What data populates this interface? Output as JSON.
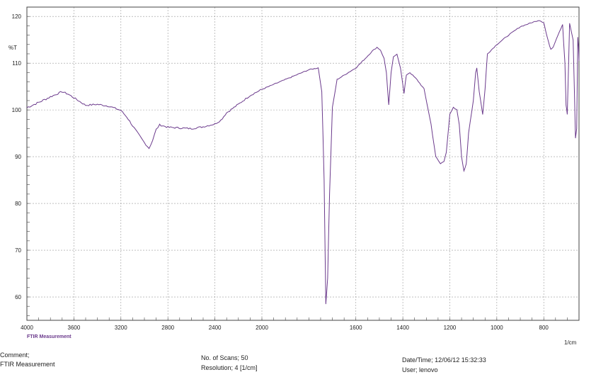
{
  "chart_data": {
    "type": "line",
    "title": "",
    "ylabel": "%T",
    "xlabel": "1/cm",
    "xlim": [
      4000,
      650
    ],
    "ylim": [
      55,
      122
    ],
    "x_ticks": [
      "4000",
      "3600",
      "3200",
      "2800",
      "2400",
      "2000",
      "1600",
      "1400",
      "1200",
      "1000",
      "800"
    ],
    "y_ticks": [
      "120",
      "110",
      "100",
      "90",
      "80",
      "70",
      "60"
    ],
    "grid": true,
    "line_color": "#6b3a8c",
    "series": [
      {
        "values": [
          [
            4000,
            100.5
          ],
          [
            3900,
            101.6
          ],
          [
            3800,
            102.8
          ],
          [
            3700,
            103.9
          ],
          [
            3650,
            103.4
          ],
          [
            3600,
            102.6
          ],
          [
            3500,
            101.0
          ],
          [
            3400,
            101.2
          ],
          [
            3300,
            100.8
          ],
          [
            3200,
            99.9
          ],
          [
            3150,
            98.5
          ],
          [
            3100,
            96.6
          ],
          [
            3050,
            94.8
          ],
          [
            3000,
            93.0
          ],
          [
            2960,
            91.8
          ],
          [
            2930,
            93.5
          ],
          [
            2900,
            95.8
          ],
          [
            2870,
            96.8
          ],
          [
            2800,
            96.3
          ],
          [
            2600,
            96.0
          ],
          [
            2500,
            96.4
          ],
          [
            2400,
            97.0
          ],
          [
            2350,
            97.8
          ],
          [
            2300,
            99.4
          ],
          [
            2200,
            101.2
          ],
          [
            2100,
            103.1
          ],
          [
            2000,
            104.4
          ],
          [
            1900,
            106.5
          ],
          [
            1800,
            108.6
          ],
          [
            1760,
            109.0
          ],
          [
            1745,
            104.0
          ],
          [
            1735,
            85.0
          ],
          [
            1728,
            58.5
          ],
          [
            1720,
            64.0
          ],
          [
            1712,
            82.0
          ],
          [
            1700,
            100.5
          ],
          [
            1680,
            106.5
          ],
          [
            1600,
            109.0
          ],
          [
            1560,
            111.0
          ],
          [
            1530,
            112.6
          ],
          [
            1510,
            113.4
          ],
          [
            1495,
            112.8
          ],
          [
            1480,
            111.0
          ],
          [
            1470,
            108.0
          ],
          [
            1460,
            101.0
          ],
          [
            1450,
            108.0
          ],
          [
            1440,
            111.3
          ],
          [
            1425,
            112.0
          ],
          [
            1410,
            109.0
          ],
          [
            1395,
            103.5
          ],
          [
            1385,
            107.5
          ],
          [
            1370,
            108.0
          ],
          [
            1340,
            106.5
          ],
          [
            1310,
            104.5
          ],
          [
            1280,
            97.0
          ],
          [
            1260,
            90.0
          ],
          [
            1240,
            88.5
          ],
          [
            1225,
            89.0
          ],
          [
            1215,
            91.0
          ],
          [
            1200,
            99.0
          ],
          [
            1185,
            100.5
          ],
          [
            1170,
            100.0
          ],
          [
            1160,
            97.0
          ],
          [
            1150,
            90.0
          ],
          [
            1140,
            87.0
          ],
          [
            1130,
            88.5
          ],
          [
            1120,
            95.0
          ],
          [
            1100,
            102.0
          ],
          [
            1090,
            108.0
          ],
          [
            1085,
            109.0
          ],
          [
            1075,
            104.0
          ],
          [
            1060,
            99.0
          ],
          [
            1050,
            104.5
          ],
          [
            1040,
            112.0
          ],
          [
            1000,
            114.0
          ],
          [
            950,
            116.0
          ],
          [
            900,
            117.8
          ],
          [
            850,
            118.7
          ],
          [
            820,
            119.2
          ],
          [
            800,
            118.7
          ],
          [
            790,
            116.5
          ],
          [
            780,
            114.5
          ],
          [
            770,
            113.0
          ],
          [
            760,
            113.5
          ],
          [
            740,
            116.0
          ],
          [
            720,
            118.3
          ],
          [
            710,
            110.0
          ],
          [
            705,
            101.0
          ],
          [
            700,
            99.0
          ],
          [
            690,
            118.5
          ],
          [
            675,
            115.0
          ],
          [
            665,
            94.0
          ],
          [
            660,
            96.0
          ],
          [
            655,
            115.5
          ],
          [
            652,
            113.5
          ],
          [
            650,
            110.5
          ]
        ]
      }
    ]
  },
  "footer": {
    "brand": "FTIR Measurement",
    "comment_label": "Comment;",
    "comment_value": "FTIR Measurement",
    "scans": "No. of Scans; 50",
    "resolution": "Resolution;    4 [1/cm]",
    "datetime": "Date/Time; 12/06/12 15:32:33",
    "user": "User;           lenovo"
  }
}
